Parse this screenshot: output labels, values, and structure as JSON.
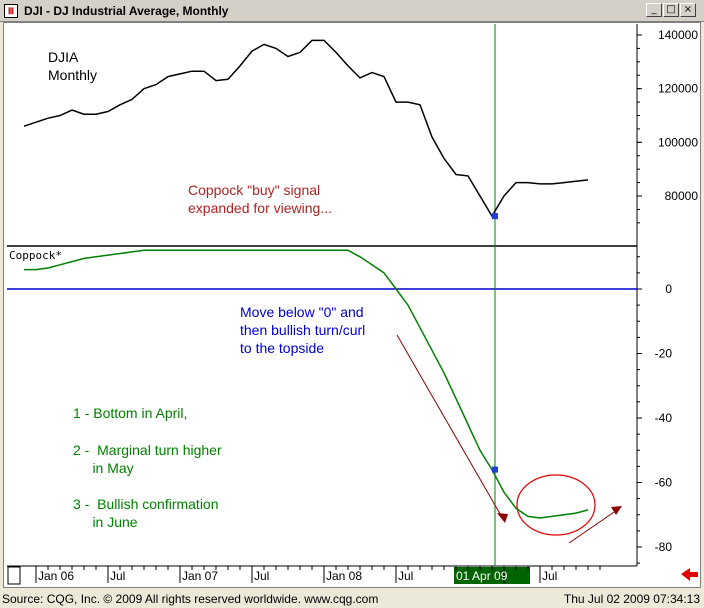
{
  "window": {
    "icon_text": "Ⅲ",
    "title": "DJI - DJ Industrial Average, Monthly",
    "buttons": [
      "_",
      "□",
      "×"
    ]
  },
  "chart_data": [
    {
      "type": "line",
      "panel": "price",
      "title": "DJIA\nMonthly",
      "title_lines": [
        "DJIA",
        "Monthly"
      ],
      "yticks": [
        80000,
        100000,
        120000,
        140000
      ],
      "ytick_labels": [
        "80000",
        "100000",
        "120000",
        "140000"
      ],
      "series": [
        {
          "color": "#000000",
          "values": [
            106000,
            107500,
            109000,
            110000,
            112000,
            110500,
            110500,
            111500,
            114000,
            116000,
            120000,
            121500,
            124500,
            125500,
            126500,
            126500,
            123000,
            123500,
            128500,
            134000,
            136500,
            135000,
            132000,
            133500,
            138000,
            138000,
            133500,
            128500,
            124000,
            126000,
            124500,
            115000,
            115000,
            114000,
            102000,
            94000,
            88000,
            87500,
            80000,
            72500,
            80000,
            85000,
            85000,
            84500,
            84500,
            85000,
            85500,
            86000
          ]
        }
      ],
      "annotation": {
        "lines": [
          "Coppock \"buy\" signal",
          "expanded for viewing..."
        ],
        "color": "#b22222"
      }
    },
    {
      "type": "line",
      "panel": "indicator",
      "title": "Coppock*",
      "yticks": [
        0,
        -20,
        -40,
        -60,
        -80
      ],
      "ytick_labels": [
        "0",
        "-20",
        "-40",
        "-60",
        "-80"
      ],
      "zero_line_color": "#0000cd",
      "series": [
        {
          "color": "#008000",
          "values": [
            6,
            6,
            6.5,
            7.5,
            8.5,
            9.5,
            10,
            10.5,
            11,
            11.5,
            12,
            12,
            12,
            12,
            12,
            12,
            12,
            12,
            12,
            12,
            12,
            12,
            12,
            12,
            12,
            12,
            12,
            12,
            10,
            7.5,
            5,
            0,
            -5,
            -12,
            -19,
            -26,
            -34,
            -42,
            -50,
            -56,
            -63,
            -68,
            -70.5,
            -71,
            -70.5,
            -70,
            -69.5,
            -68.5
          ]
        }
      ],
      "annotations": [
        {
          "lines": [
            "Move below \"0\" and",
            "then bullish turn/curl",
            "to the topside"
          ],
          "color": "#0000cd"
        },
        {
          "lines": [
            "1 - Bottom in April,"
          ],
          "color": "#008000"
        },
        {
          "lines": [
            "2 -  Marginal turn higher",
            "     in May"
          ],
          "color": "#008000"
        },
        {
          "lines": [
            "3 -  Bullish confirmation",
            "     in June"
          ],
          "color": "#008000"
        }
      ],
      "highlight_color": "#e00000",
      "arrow_color": "#8b0000"
    }
  ],
  "x_axis": {
    "labels": [
      "Jan 06",
      "Jul",
      "Jan 07",
      "Jul",
      "Jan 08",
      "Jul",
      "01 Apr 09",
      "Jul"
    ],
    "highlight_label": "01 Apr 09",
    "highlight_bg": "#006400",
    "cursor_index": 39
  },
  "status": {
    "left": "Source: CQG, Inc. © 2009 All rights reserved worldwide. www.cqg.com",
    "right": "Thu Jul 02 2009 07:34:13"
  }
}
